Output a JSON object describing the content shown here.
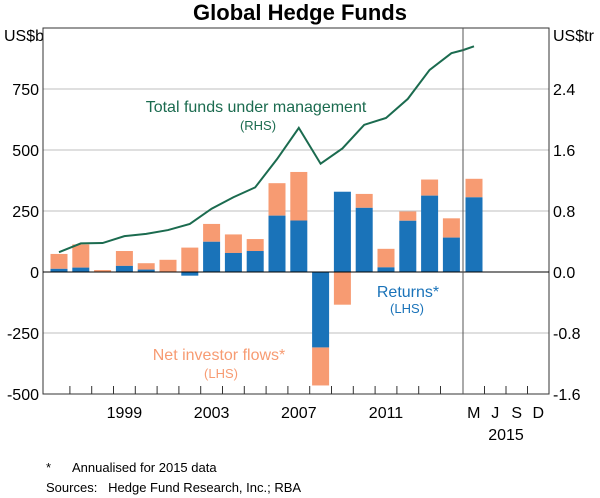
{
  "chart_data": {
    "type": "bar",
    "title": "Global Hedge Funds",
    "left_unit": "US$b",
    "right_unit": "US$tr",
    "left_ylim": [
      -500,
      1000
    ],
    "left_ticks": [
      "750",
      "500",
      "250",
      "0",
      "-250",
      "-500"
    ],
    "left_tick_values": [
      750,
      500,
      250,
      0,
      -250,
      -500
    ],
    "right_ylim": [
      -1.6,
      3.2
    ],
    "right_ticks": [
      "2.4",
      "1.6",
      "0.8",
      "0.0",
      "-0.8",
      "-1.6"
    ],
    "right_tick_values": [
      2.4,
      1.6,
      0.8,
      0.0,
      -0.8,
      -1.6
    ],
    "grid": true,
    "categories": [
      "1996",
      "1997",
      "1998",
      "1999",
      "2000",
      "2001",
      "2002",
      "2003",
      "2004",
      "2005",
      "2006",
      "2007",
      "2008",
      "2009",
      "2010",
      "2011",
      "2012",
      "2013",
      "2014",
      "2015"
    ],
    "x_tick_labels": [
      "1999",
      "2003",
      "2007",
      "2011"
    ],
    "quarter_labels": [
      "M",
      "J",
      "S",
      "D"
    ],
    "year_2015_label": "2015",
    "series": [
      {
        "name": "Returns*",
        "sublabel": "(LHS)",
        "type": "bar",
        "axis": "left",
        "color": "#1a73b9",
        "values": [
          13,
          18,
          0,
          25,
          10,
          2,
          -15,
          124,
          78,
          86,
          231,
          211,
          -309,
          329,
          263,
          19,
          210,
          313,
          141,
          306
        ]
      },
      {
        "name": "Net investor flows*",
        "sublabel": "(LHS)",
        "type": "bar",
        "axis": "left",
        "color": "#f79b72",
        "values": [
          61,
          95,
          8,
          61,
          26,
          48,
          100,
          73,
          76,
          49,
          133,
          199,
          -156,
          -134,
          57,
          76,
          38,
          66,
          79,
          76
        ]
      },
      {
        "name": "Total funds under management",
        "sublabel": "(RHS)",
        "type": "line",
        "axis": "right",
        "color": "#1b6b4f",
        "x": [
          "1996",
          "1997",
          "1998",
          "1999",
          "2000",
          "2001",
          "2002",
          "2003",
          "2004",
          "2005",
          "2006",
          "2007",
          "2008",
          "2009",
          "2010",
          "2011",
          "2012",
          "2013",
          "2014",
          "Dec 2014",
          "Mar 2015"
        ],
        "values": [
          0.26,
          0.375,
          0.38,
          0.47,
          0.5,
          0.55,
          0.63,
          0.83,
          0.98,
          1.11,
          1.48,
          1.89,
          1.42,
          1.62,
          1.93,
          2.02,
          2.27,
          2.65,
          2.87,
          2.91,
          2.96
        ]
      }
    ]
  },
  "footnotes": {
    "note": "*      Annualised for 2015 data",
    "sources": "Sources:   Hedge Fund Research, Inc.; RBA"
  }
}
